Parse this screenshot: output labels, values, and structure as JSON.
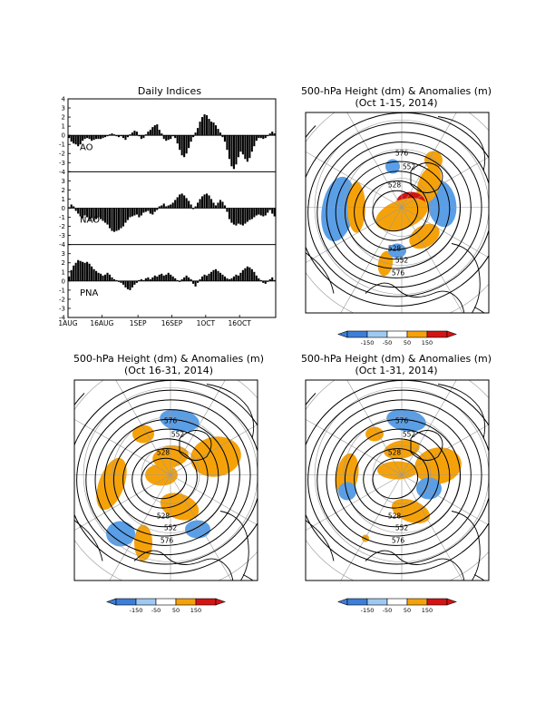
{
  "chart_data": [
    {
      "type": "bar",
      "title": "Daily Indices",
      "x_tick_labels": [
        "1AUG",
        "16AUG",
        "1SEP",
        "16SEP",
        "1OCT",
        "16OCT"
      ],
      "ylim": [
        -4,
        4
      ],
      "y_ticks": [
        "4",
        "3",
        "2",
        "1",
        "0",
        "-1",
        "-2",
        "-3",
        "-4"
      ],
      "series": [
        {
          "name": "AO",
          "values": [
            -0.3,
            -0.7,
            -0.9,
            -1.0,
            -1.2,
            -1.0,
            -0.6,
            -0.4,
            -0.3,
            -0.4,
            -0.6,
            -0.5,
            -0.4,
            -0.4,
            -0.4,
            -0.3,
            -0.2,
            -0.1,
            0.1,
            0.2,
            0.1,
            -0.1,
            -0.2,
            -0.1,
            -0.3,
            -0.5,
            -0.2,
            0.1,
            0.3,
            0.5,
            0.4,
            -0.1,
            -0.4,
            -0.3,
            0.1,
            0.4,
            0.6,
            0.9,
            1.1,
            1.2,
            0.6,
            0.2,
            -0.4,
            -0.6,
            -0.5,
            -0.4,
            -0.1,
            -0.3,
            -0.9,
            -1.6,
            -2.2,
            -2.4,
            -2.0,
            -1.4,
            -0.7,
            -0.2,
            0.3,
            0.8,
            1.5,
            2.0,
            2.3,
            2.2,
            1.8,
            1.5,
            1.4,
            1.1,
            0.7,
            0.3,
            -0.2,
            -0.7,
            -1.6,
            -2.6,
            -3.4,
            -3.7,
            -3.2,
            -2.4,
            -1.8,
            -2.1,
            -2.6,
            -2.9,
            -2.5,
            -1.8,
            -1.2,
            -0.6,
            -0.3,
            -0.3,
            -0.4,
            -0.3,
            -0.1,
            0.2,
            0.4,
            0.2
          ]
        },
        {
          "name": "NAO",
          "values": [
            0.1,
            0.4,
            0.2,
            -0.3,
            -0.6,
            -0.9,
            -1.1,
            -0.8,
            -1.0,
            -1.3,
            -1.1,
            -1.4,
            -1.2,
            -1.0,
            -1.2,
            -1.4,
            -1.6,
            -1.8,
            -2.2,
            -2.5,
            -2.6,
            -2.5,
            -2.4,
            -2.2,
            -2.0,
            -1.6,
            -1.3,
            -1.0,
            -0.9,
            -0.8,
            -0.7,
            -1.0,
            -0.8,
            -0.5,
            -0.4,
            -0.3,
            -0.6,
            -0.7,
            -0.4,
            -0.2,
            0.2,
            0.3,
            0.5,
            0.2,
            0.3,
            0.4,
            0.6,
            0.9,
            1.2,
            1.5,
            1.6,
            1.4,
            1.1,
            0.8,
            0.4,
            -0.1,
            0.2,
            0.6,
            1.0,
            1.3,
            1.5,
            1.6,
            1.4,
            1.0,
            0.6,
            0.3,
            0.6,
            0.9,
            0.7,
            0.3,
            -0.4,
            -1.2,
            -1.6,
            -1.8,
            -1.9,
            -1.7,
            -1.8,
            -1.9,
            -1.7,
            -1.5,
            -1.3,
            -1.2,
            -1.0,
            -0.8,
            -0.7,
            -0.8,
            -0.9,
            -0.8,
            -0.5,
            -0.2,
            -0.6,
            -0.9
          ]
        },
        {
          "name": "PNA",
          "values": [
            0.5,
            1.2,
            1.7,
            2.0,
            2.3,
            2.2,
            2.1,
            2.0,
            2.1,
            1.9,
            1.6,
            1.3,
            1.1,
            0.9,
            0.8,
            0.6,
            0.7,
            0.9,
            0.7,
            0.4,
            0.2,
            0.1,
            -0.1,
            -0.2,
            -0.4,
            -0.7,
            -0.9,
            -1.0,
            -0.7,
            -0.4,
            -0.2,
            0.1,
            0.2,
            0.1,
            0.3,
            0.4,
            0.2,
            0.4,
            0.6,
            0.5,
            0.7,
            0.8,
            0.6,
            0.7,
            0.9,
            0.7,
            0.5,
            0.3,
            0.1,
            -0.1,
            0.2,
            0.4,
            0.6,
            0.4,
            0.2,
            -0.3,
            -0.6,
            -0.2,
            0.2,
            0.5,
            0.7,
            0.6,
            0.8,
            1.0,
            1.2,
            1.3,
            1.1,
            0.9,
            0.7,
            0.5,
            0.3,
            0.2,
            0.3,
            0.5,
            0.7,
            0.6,
            0.9,
            1.2,
            1.4,
            1.6,
            1.5,
            1.3,
            1.0,
            0.6,
            0.3,
            0.1,
            -0.2,
            -0.3,
            -0.1,
            0.2,
            0.4,
            0.1
          ]
        }
      ]
    },
    {
      "type": "heatmap",
      "title": "500-hPa Height (dm) & Anomalies (m)",
      "subtitle": "(Oct 1-15, 2014)",
      "contour_labels": [
        "576",
        "552",
        "528",
        "528",
        "552",
        "576"
      ],
      "colorbar": {
        "labels": [
          "-150",
          "-50",
          "50",
          "150"
        ],
        "colors": [
          "#3d7fd8",
          "#9ec9f2",
          "#ffffff",
          "#f5a20a",
          "#d41414"
        ]
      }
    },
    {
      "type": "heatmap",
      "title": "500-hPa Height (dm) & Anomalies (m)",
      "subtitle": "(Oct 16-31, 2014)",
      "contour_labels": [
        "576",
        "552",
        "528",
        "528",
        "552",
        "576"
      ],
      "colorbar": {
        "labels": [
          "-150",
          "-50",
          "50",
          "150"
        ],
        "colors": [
          "#3d7fd8",
          "#9ec9f2",
          "#ffffff",
          "#f5a20a",
          "#d41414"
        ]
      }
    },
    {
      "type": "heatmap",
      "title": "500-hPa Height (dm) & Anomalies (m)",
      "subtitle": "(Oct 1-31, 2014)",
      "contour_labels": [
        "576",
        "552",
        "528",
        "528",
        "552",
        "576"
      ],
      "colorbar": {
        "labels": [
          "-150",
          "-50",
          "50",
          "150"
        ],
        "colors": [
          "#3d7fd8",
          "#9ec9f2",
          "#ffffff",
          "#f5a20a",
          "#d41414"
        ]
      }
    }
  ]
}
